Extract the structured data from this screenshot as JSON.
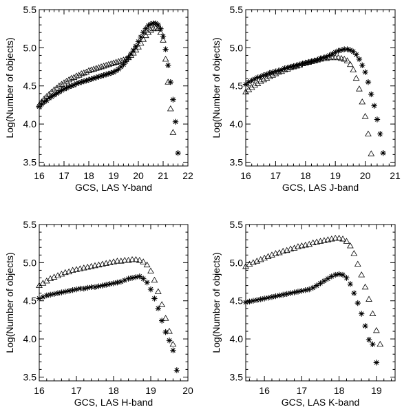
{
  "chart_data": [
    {
      "type": "scatter",
      "title": "",
      "xlabel": "GCS, LAS Y-band",
      "ylabel": "Log(Number of objects)",
      "xlim": [
        16,
        22
      ],
      "ylim": [
        3.45,
        5.5
      ],
      "xticks": [
        "16",
        "17",
        "18",
        "19",
        "20",
        "21",
        "22"
      ],
      "yticks": [
        "3.5",
        "4.0",
        "4.5",
        "5.0",
        "5.5"
      ],
      "grid": false,
      "legend": "none",
      "series": [
        {
          "marker": "asterisk",
          "x": [
            16.0,
            16.1,
            16.2,
            16.3,
            16.4,
            16.5,
            16.6,
            16.7,
            16.8,
            16.9,
            17.0,
            17.1,
            17.2,
            17.3,
            17.4,
            17.5,
            17.6,
            17.7,
            17.8,
            17.9,
            18.0,
            18.1,
            18.2,
            18.3,
            18.4,
            18.5,
            18.6,
            18.7,
            18.8,
            18.9,
            19.0,
            19.1,
            19.2,
            19.3,
            19.4,
            19.5,
            19.6,
            19.7,
            19.8,
            19.9,
            20.0,
            20.1,
            20.2,
            20.3,
            20.4,
            20.5,
            20.6,
            20.7,
            20.8,
            20.9,
            21.0,
            21.1,
            21.2,
            21.3,
            21.4,
            21.5,
            21.6
          ],
          "y": [
            4.23,
            4.26,
            4.29,
            4.31,
            4.34,
            4.36,
            4.38,
            4.4,
            4.42,
            4.44,
            4.46,
            4.47,
            4.49,
            4.5,
            4.51,
            4.53,
            4.54,
            4.55,
            4.56,
            4.57,
            4.58,
            4.59,
            4.6,
            4.61,
            4.62,
            4.63,
            4.64,
            4.65,
            4.66,
            4.67,
            4.68,
            4.7,
            4.72,
            4.75,
            4.78,
            4.82,
            4.87,
            4.92,
            4.97,
            5.02,
            5.08,
            5.14,
            5.2,
            5.25,
            5.29,
            5.31,
            5.32,
            5.32,
            5.3,
            5.25,
            5.15,
            4.98,
            4.77,
            4.55,
            4.32,
            4.03,
            3.62
          ]
        },
        {
          "marker": "triangle",
          "x": [
            16.0,
            16.1,
            16.2,
            16.3,
            16.4,
            16.5,
            16.6,
            16.7,
            16.8,
            16.9,
            17.0,
            17.1,
            17.2,
            17.3,
            17.4,
            17.5,
            17.6,
            17.7,
            17.8,
            17.9,
            18.0,
            18.1,
            18.2,
            18.3,
            18.4,
            18.5,
            18.6,
            18.7,
            18.8,
            18.9,
            19.0,
            19.1,
            19.2,
            19.3,
            19.4,
            19.5,
            19.6,
            19.7,
            19.8,
            19.9,
            20.0,
            20.1,
            20.2,
            20.3,
            20.4,
            20.5,
            20.6,
            20.7,
            20.8,
            20.9,
            21.0,
            21.1,
            21.2,
            21.3,
            21.4
          ],
          "y": [
            4.25,
            4.29,
            4.33,
            4.36,
            4.39,
            4.42,
            4.45,
            4.47,
            4.5,
            4.52,
            4.54,
            4.56,
            4.58,
            4.6,
            4.61,
            4.63,
            4.64,
            4.66,
            4.67,
            4.68,
            4.7,
            4.71,
            4.72,
            4.73,
            4.74,
            4.75,
            4.76,
            4.77,
            4.78,
            4.79,
            4.8,
            4.81,
            4.82,
            4.83,
            4.84,
            4.85,
            4.87,
            4.9,
            4.93,
            4.97,
            5.01,
            5.06,
            5.11,
            5.16,
            5.2,
            5.23,
            5.25,
            5.26,
            5.25,
            5.2,
            5.1,
            4.85,
            4.55,
            4.2,
            3.89
          ]
        }
      ]
    },
    {
      "type": "scatter",
      "title": "",
      "xlabel": "GCS, LAS J-band",
      "ylabel": "Log(Number of objects)",
      "xlim": [
        16,
        21
      ],
      "ylim": [
        3.45,
        5.5
      ],
      "xticks": [
        "16",
        "17",
        "18",
        "19",
        "20",
        "21"
      ],
      "yticks": [
        "3.5",
        "4.0",
        "4.5",
        "5.0",
        "5.5"
      ],
      "grid": false,
      "legend": "none",
      "series": [
        {
          "marker": "asterisk",
          "x": [
            16.0,
            16.1,
            16.2,
            16.3,
            16.4,
            16.5,
            16.6,
            16.7,
            16.8,
            16.9,
            17.0,
            17.1,
            17.2,
            17.3,
            17.4,
            17.5,
            17.6,
            17.7,
            17.8,
            17.9,
            18.0,
            18.1,
            18.2,
            18.3,
            18.4,
            18.5,
            18.6,
            18.7,
            18.8,
            18.9,
            19.0,
            19.1,
            19.2,
            19.3,
            19.4,
            19.5,
            19.6,
            19.7,
            19.8,
            19.9,
            20.0,
            20.1,
            20.2,
            20.3,
            20.4,
            20.5,
            20.6
          ],
          "y": [
            4.52,
            4.55,
            4.57,
            4.59,
            4.61,
            4.62,
            4.64,
            4.65,
            4.67,
            4.68,
            4.69,
            4.7,
            4.71,
            4.73,
            4.74,
            4.75,
            4.76,
            4.77,
            4.78,
            4.79,
            4.8,
            4.81,
            4.82,
            4.83,
            4.84,
            4.86,
            4.87,
            4.88,
            4.9,
            4.92,
            4.94,
            4.96,
            4.97,
            4.98,
            4.98,
            4.97,
            4.95,
            4.91,
            4.85,
            4.77,
            4.68,
            4.55,
            4.39,
            4.24,
            4.06,
            3.87,
            3.62
          ]
        },
        {
          "marker": "triangle",
          "x": [
            16.0,
            16.1,
            16.2,
            16.3,
            16.4,
            16.5,
            16.6,
            16.7,
            16.8,
            16.9,
            17.0,
            17.1,
            17.2,
            17.3,
            17.4,
            17.5,
            17.6,
            17.7,
            17.8,
            17.9,
            18.0,
            18.1,
            18.2,
            18.3,
            18.4,
            18.5,
            18.6,
            18.7,
            18.8,
            18.9,
            19.0,
            19.1,
            19.2,
            19.3,
            19.4,
            19.5,
            19.6,
            19.7,
            19.8,
            19.9,
            20.0,
            20.1,
            20.2
          ],
          "y": [
            4.42,
            4.45,
            4.48,
            4.51,
            4.53,
            4.56,
            4.58,
            4.6,
            4.62,
            4.64,
            4.66,
            4.68,
            4.69,
            4.71,
            4.72,
            4.74,
            4.75,
            4.76,
            4.77,
            4.79,
            4.8,
            4.81,
            4.82,
            4.83,
            4.84,
            4.85,
            4.86,
            4.86,
            4.87,
            4.87,
            4.87,
            4.87,
            4.86,
            4.85,
            4.83,
            4.78,
            4.71,
            4.6,
            4.46,
            4.29,
            4.1,
            3.87,
            3.61
          ]
        }
      ]
    },
    {
      "type": "scatter",
      "title": "",
      "xlabel": "GCS, LAS H-band",
      "ylabel": "Log(Number of objects)",
      "xlim": [
        16,
        20
      ],
      "ylim": [
        3.45,
        5.5
      ],
      "xticks": [
        "16",
        "17",
        "18",
        "19",
        "20"
      ],
      "yticks": [
        "3.5",
        "4.0",
        "4.5",
        "5.0",
        "5.5"
      ],
      "grid": false,
      "legend": "none",
      "series": [
        {
          "marker": "asterisk",
          "x": [
            16.0,
            16.1,
            16.2,
            16.3,
            16.4,
            16.5,
            16.6,
            16.7,
            16.8,
            16.9,
            17.0,
            17.1,
            17.2,
            17.3,
            17.4,
            17.5,
            17.6,
            17.7,
            17.8,
            17.9,
            18.0,
            18.1,
            18.2,
            18.3,
            18.4,
            18.5,
            18.6,
            18.7,
            18.8,
            18.9,
            19.0,
            19.1,
            19.2,
            19.3,
            19.4,
            19.5,
            19.6,
            19.7
          ],
          "y": [
            4.53,
            4.55,
            4.57,
            4.58,
            4.59,
            4.6,
            4.61,
            4.62,
            4.63,
            4.64,
            4.65,
            4.66,
            4.66,
            4.67,
            4.68,
            4.68,
            4.69,
            4.7,
            4.71,
            4.72,
            4.73,
            4.74,
            4.75,
            4.77,
            4.79,
            4.8,
            4.81,
            4.82,
            4.79,
            4.74,
            4.65,
            4.53,
            4.4,
            4.24,
            4.09,
            3.98,
            3.85,
            3.59
          ]
        },
        {
          "marker": "triangle",
          "x": [
            16.0,
            16.1,
            16.2,
            16.3,
            16.4,
            16.5,
            16.6,
            16.7,
            16.8,
            16.9,
            17.0,
            17.1,
            17.2,
            17.3,
            17.4,
            17.5,
            17.6,
            17.7,
            17.8,
            17.9,
            18.0,
            18.1,
            18.2,
            18.3,
            18.4,
            18.5,
            18.6,
            18.7,
            18.8,
            18.9,
            19.0,
            19.1,
            19.2,
            19.3,
            19.4,
            19.5,
            19.6
          ],
          "y": [
            4.7,
            4.73,
            4.76,
            4.79,
            4.81,
            4.83,
            4.85,
            4.87,
            4.88,
            4.9,
            4.91,
            4.92,
            4.93,
            4.94,
            4.95,
            4.96,
            4.97,
            4.98,
            4.99,
            5.0,
            5.01,
            5.02,
            5.02,
            5.03,
            5.03,
            5.04,
            5.04,
            5.03,
            5.01,
            4.97,
            4.89,
            4.77,
            4.62,
            4.45,
            4.27,
            4.1,
            3.93
          ]
        }
      ]
    },
    {
      "type": "scatter",
      "title": "",
      "xlabel": "GCS, LAS K-band",
      "ylabel": "Log(Number of objects)",
      "xlim": [
        15.5,
        19.5
      ],
      "ylim": [
        3.45,
        5.5
      ],
      "xticks": [
        "16",
        "17",
        "18",
        "19"
      ],
      "xtick_values": [
        16,
        17,
        18,
        19
      ],
      "yticks": [
        "3.5",
        "4.0",
        "4.5",
        "5.0",
        "5.5"
      ],
      "grid": false,
      "legend": "none",
      "series": [
        {
          "marker": "asterisk",
          "x": [
            15.5,
            15.6,
            15.7,
            15.8,
            15.9,
            16.0,
            16.1,
            16.2,
            16.3,
            16.4,
            16.5,
            16.6,
            16.7,
            16.8,
            16.9,
            17.0,
            17.1,
            17.2,
            17.3,
            17.4,
            17.5,
            17.6,
            17.7,
            17.8,
            17.9,
            18.0,
            18.1,
            18.2,
            18.3,
            18.4,
            18.5,
            18.6,
            18.7,
            18.8,
            18.9,
            19.0
          ],
          "y": [
            4.48,
            4.49,
            4.5,
            4.51,
            4.52,
            4.53,
            4.54,
            4.55,
            4.56,
            4.57,
            4.58,
            4.59,
            4.6,
            4.61,
            4.62,
            4.63,
            4.64,
            4.65,
            4.67,
            4.7,
            4.73,
            4.76,
            4.79,
            4.82,
            4.84,
            4.85,
            4.84,
            4.8,
            4.72,
            4.6,
            4.47,
            4.33,
            4.17,
            3.99,
            3.93,
            3.69
          ]
        },
        {
          "marker": "triangle",
          "x": [
            15.5,
            15.6,
            15.7,
            15.8,
            15.9,
            16.0,
            16.1,
            16.2,
            16.3,
            16.4,
            16.5,
            16.6,
            16.7,
            16.8,
            16.9,
            17.0,
            17.1,
            17.2,
            17.3,
            17.4,
            17.5,
            17.6,
            17.7,
            17.8,
            17.9,
            18.0,
            18.1,
            18.2,
            18.3,
            18.4,
            18.5,
            18.6,
            18.7,
            18.8,
            18.9,
            19.0,
            19.1
          ],
          "y": [
            4.95,
            4.98,
            5.0,
            5.02,
            5.04,
            5.06,
            5.08,
            5.1,
            5.12,
            5.13,
            5.15,
            5.16,
            5.18,
            5.19,
            5.21,
            5.22,
            5.23,
            5.24,
            5.26,
            5.27,
            5.28,
            5.29,
            5.3,
            5.31,
            5.32,
            5.32,
            5.31,
            5.28,
            5.22,
            5.12,
            4.98,
            4.84,
            4.68,
            4.52,
            4.33,
            4.11,
            3.93
          ]
        }
      ]
    }
  ]
}
